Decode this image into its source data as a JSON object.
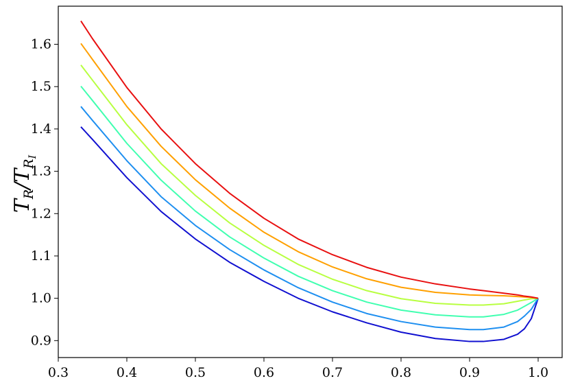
{
  "chart_data": {
    "type": "line",
    "title": "",
    "xlabel": "",
    "ylabel": {
      "main": "T",
      "sub": "R",
      "slash": "/",
      "main2": "T",
      "sub2": "R",
      "subsub2": "I"
    },
    "xlim": [
      0.3,
      1.035
    ],
    "ylim": [
      0.86,
      1.69
    ],
    "xticks": [
      0.3,
      0.4,
      0.5,
      0.6,
      0.7,
      0.8,
      0.9,
      1.0
    ],
    "xtick_labels": [
      "0.3",
      "0.4",
      "0.5",
      "0.6",
      "0.7",
      "0.8",
      "0.9",
      "1.0"
    ],
    "yticks": [
      0.9,
      1.0,
      1.1,
      1.2,
      1.3,
      1.4,
      1.5,
      1.6
    ],
    "ytick_labels": [
      "0.9",
      "1.0",
      "1.1",
      "1.2",
      "1.3",
      "1.4",
      "1.5",
      "1.6"
    ],
    "grid": false,
    "legend": "none",
    "x": [
      0.333,
      0.35,
      0.4,
      0.45,
      0.5,
      0.55,
      0.6,
      0.65,
      0.7,
      0.75,
      0.8,
      0.85,
      0.9,
      0.92,
      0.95,
      0.97,
      0.98,
      0.99,
      1.0
    ],
    "series": [
      {
        "color": "#1010d0",
        "values": [
          1.405,
          1.375,
          1.285,
          1.205,
          1.14,
          1.085,
          1.04,
          1.0,
          0.968,
          0.942,
          0.92,
          0.905,
          0.898,
          0.898,
          0.903,
          0.915,
          0.928,
          0.952,
          1.0
        ]
      },
      {
        "color": "#1e8ff0",
        "values": [
          1.453,
          1.42,
          1.325,
          1.24,
          1.172,
          1.115,
          1.067,
          1.025,
          0.991,
          0.964,
          0.945,
          0.932,
          0.926,
          0.926,
          0.932,
          0.945,
          0.958,
          0.974,
          1.0
        ]
      },
      {
        "color": "#40ffb0",
        "values": [
          1.501,
          1.467,
          1.366,
          1.279,
          1.206,
          1.145,
          1.095,
          1.052,
          1.018,
          0.991,
          0.972,
          0.961,
          0.956,
          0.956,
          0.962,
          0.972,
          0.981,
          0.99,
          1.0
        ]
      },
      {
        "color": "#b8ff40",
        "values": [
          1.551,
          1.515,
          1.41,
          1.318,
          1.243,
          1.178,
          1.125,
          1.08,
          1.045,
          1.018,
          0.999,
          0.988,
          0.984,
          0.984,
          0.987,
          0.993,
          0.996,
          0.999,
          1.0
        ]
      },
      {
        "color": "#ffa000",
        "values": [
          1.602,
          1.564,
          1.453,
          1.359,
          1.28,
          1.213,
          1.156,
          1.11,
          1.074,
          1.046,
          1.026,
          1.014,
          1.008,
          1.007,
          1.006,
          1.004,
          1.003,
          1.002,
          1.0
        ]
      },
      {
        "color": "#e81010",
        "values": [
          1.655,
          1.613,
          1.498,
          1.4,
          1.318,
          1.248,
          1.189,
          1.14,
          1.103,
          1.073,
          1.05,
          1.034,
          1.022,
          1.018,
          1.012,
          1.008,
          1.005,
          1.003,
          1.0
        ]
      }
    ]
  }
}
